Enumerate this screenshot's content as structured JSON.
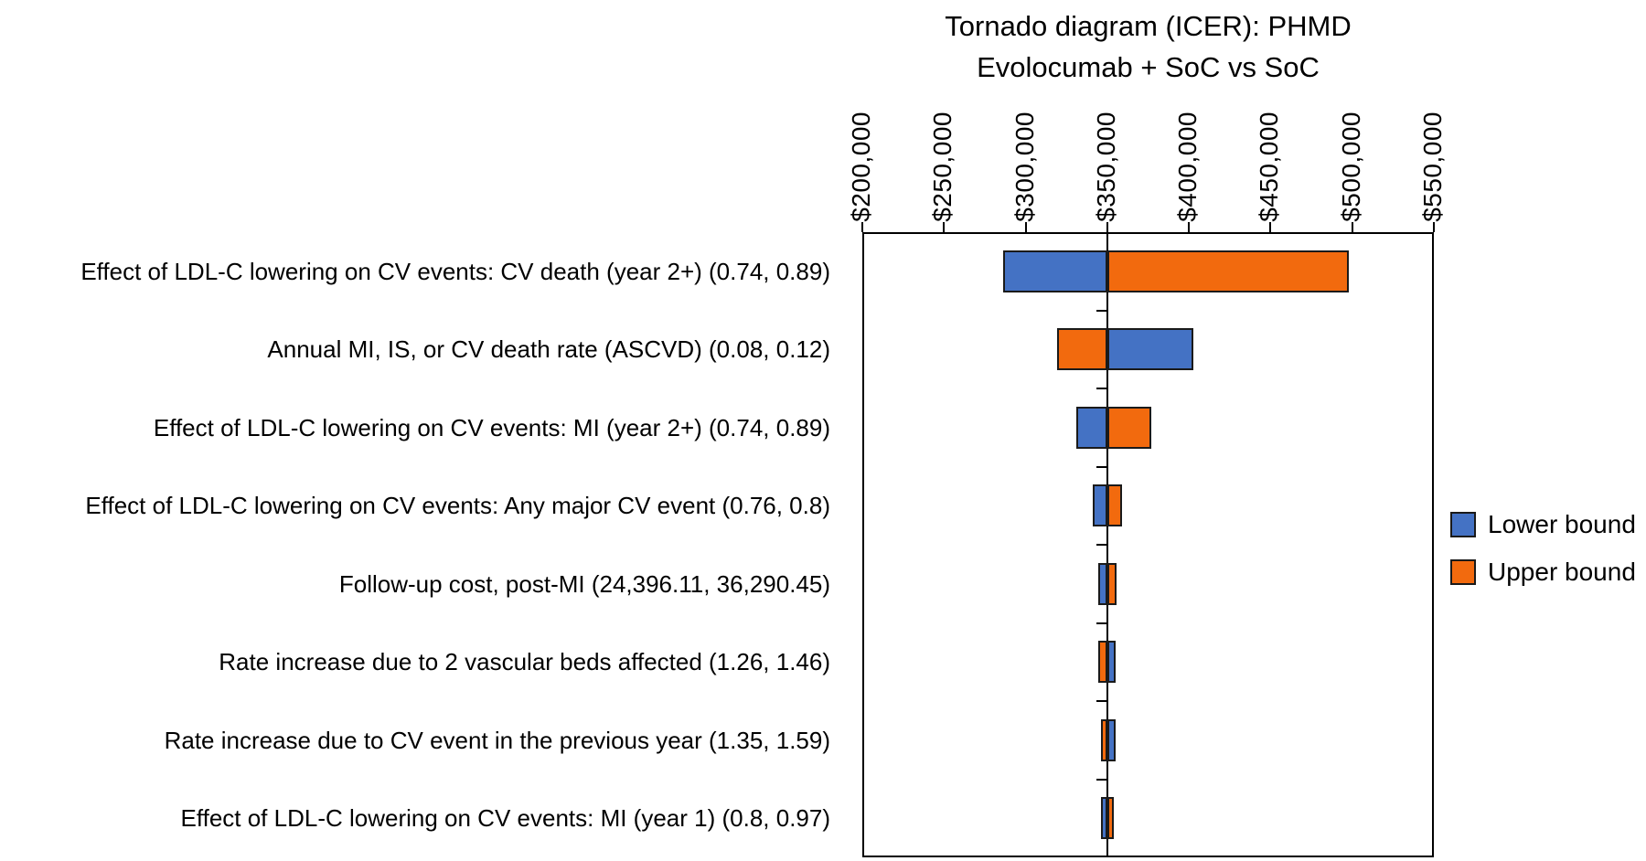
{
  "chart_data": {
    "type": "bar",
    "variant": "tornado",
    "title_line1": "Tornado diagram (ICER): PHMD",
    "title_line2": "Evolocumab + SoC vs SoC",
    "axis": {
      "min": 200000,
      "max": 550000,
      "step": 50000,
      "tick_labels": [
        "$200,000",
        "$250,000",
        "$300,000",
        "$350,000",
        "$400,000",
        "$450,000",
        "$500,000",
        "$550,000"
      ],
      "orientation": "horizontal-values-on-top",
      "tick_label_rotation_deg": 90
    },
    "baseline_icer": 350000,
    "legend_position": "right",
    "legend": [
      {
        "name": "Lower bound",
        "color": "#4472C4"
      },
      {
        "name": "Upper bound",
        "color": "#F26A0E"
      }
    ],
    "rows": [
      {
        "label": "Effect of LDL-C lowering on CV events: CV death (year 2+) (0.74, 0.89)",
        "lower_icer": 286000,
        "upper_icer": 498000
      },
      {
        "label": "Annual MI, IS, or CV death rate (ASCVD) (0.08, 0.12)",
        "lower_icer": 402500,
        "upper_icer": 319000
      },
      {
        "label": "Effect of LDL-C lowering on CV events: MI (year 2+) (0.74, 0.89)",
        "lower_icer": 331000,
        "upper_icer": 377000
      },
      {
        "label": "Effect of LDL-C lowering on CV events: Any major CV event (0.76, 0.8)",
        "lower_icer": 341000,
        "upper_icer": 359000
      },
      {
        "label": "Follow-up cost, post-MI (24,396.11, 36,290.45)",
        "lower_icer": 344500,
        "upper_icer": 355500
      },
      {
        "label": "Rate increase due to 2 vascular beds affected (1.26, 1.46)",
        "lower_icer": 355300,
        "upper_icer": 344700
      },
      {
        "label": "Rate increase due to CV event in the previous year (1.35, 1.59)",
        "lower_icer": 355000,
        "upper_icer": 346000
      },
      {
        "label": "Effect of LDL-C lowering on CV events: MI (year 1) (0.8, 0.97)",
        "lower_icer": 346000,
        "upper_icer": 354000
      }
    ],
    "colors": {
      "bar_border": "#1a1a1a",
      "axis_line": "#000000",
      "text": "#000000",
      "background": "#ffffff"
    }
  }
}
